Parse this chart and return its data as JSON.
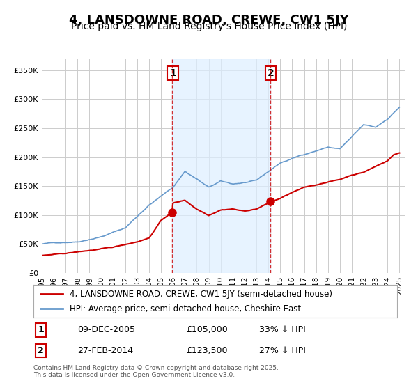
{
  "title": "4, LANSDOWNE ROAD, CREWE, CW1 5JY",
  "subtitle": "Price paid vs. HM Land Registry's House Price Index (HPI)",
  "title_fontsize": 13,
  "subtitle_fontsize": 10,
  "background_color": "#ffffff",
  "plot_bg_color": "#ffffff",
  "grid_color": "#cccccc",
  "hpi_color": "#6699cc",
  "price_color": "#cc0000",
  "ylim": [
    0,
    370000
  ],
  "yticks": [
    0,
    50000,
    100000,
    150000,
    200000,
    250000,
    300000,
    350000
  ],
  "xlim_start": 1995.0,
  "xlim_end": 2025.5,
  "marker1_x": 2005.94,
  "marker1_y": 105000,
  "marker2_x": 2014.16,
  "marker2_y": 123500,
  "vspan_x1": 2005.94,
  "vspan_x2": 2014.16,
  "legend_label_price": "4, LANSDOWNE ROAD, CREWE, CW1 5JY (semi-detached house)",
  "legend_label_hpi": "HPI: Average price, semi-detached house, Cheshire East",
  "annotation1_label": "1",
  "annotation2_label": "2",
  "table_row1": [
    "1",
    "09-DEC-2005",
    "£105,000",
    "33% ↓ HPI"
  ],
  "table_row2": [
    "2",
    "27-FEB-2014",
    "£123,500",
    "27% ↓ HPI"
  ],
  "footer": "Contains HM Land Registry data © Crown copyright and database right 2025.\nThis data is licensed under the Open Government Licence v3.0.",
  "xticks": [
    1995,
    1996,
    1997,
    1998,
    1999,
    2000,
    2001,
    2002,
    2003,
    2004,
    2005,
    2006,
    2007,
    2008,
    2009,
    2010,
    2011,
    2012,
    2013,
    2014,
    2015,
    2016,
    2017,
    2018,
    2019,
    2020,
    2021,
    2022,
    2023,
    2024,
    2025
  ]
}
